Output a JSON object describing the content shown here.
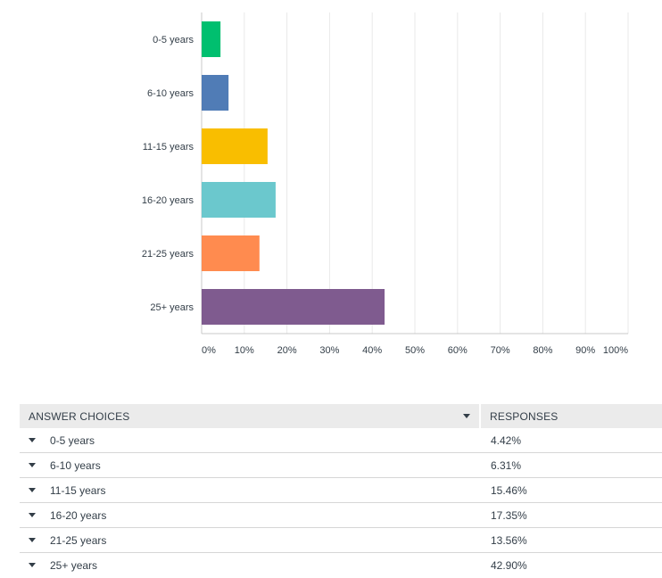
{
  "chart_data": {
    "type": "bar",
    "orientation": "horizontal",
    "categories": [
      "0-5 years",
      "6-10 years",
      "11-15 years",
      "16-20 years",
      "21-25 years",
      "25+ years"
    ],
    "values": [
      4.42,
      6.31,
      15.46,
      17.35,
      13.56,
      42.9
    ],
    "colors": [
      "#00bf6f",
      "#507cb6",
      "#f9be00",
      "#6bc8cd",
      "#ff8b4f",
      "#7f5b8f"
    ],
    "xlim": [
      0,
      100
    ],
    "xticks": [
      "0%",
      "10%",
      "20%",
      "30%",
      "40%",
      "50%",
      "60%",
      "70%",
      "80%",
      "90%",
      "100%"
    ],
    "grid": true,
    "legend": "none"
  },
  "table": {
    "header_choices": "ANSWER CHOICES",
    "header_responses": "RESPONSES",
    "rows": [
      {
        "choice": "0-5 years",
        "response": "4.42%"
      },
      {
        "choice": "6-10 years",
        "response": "6.31%"
      },
      {
        "choice": "11-15 years",
        "response": "15.46%"
      },
      {
        "choice": "16-20 years",
        "response": "17.35%"
      },
      {
        "choice": "21-25 years",
        "response": "13.56%"
      },
      {
        "choice": "25+ years",
        "response": "42.90%"
      }
    ]
  }
}
